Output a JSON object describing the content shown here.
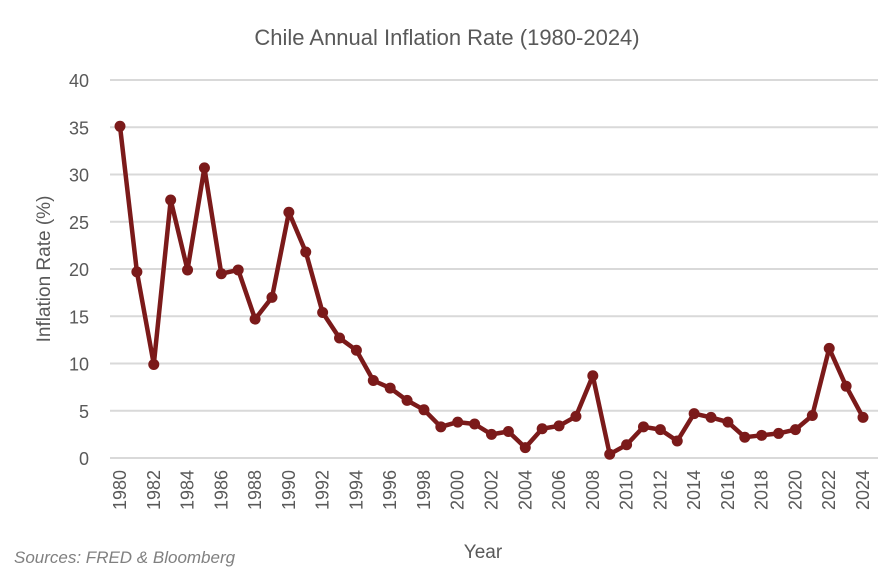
{
  "chart_data": {
    "type": "line",
    "title": "Chile Annual Inflation Rate  (1980-2024)",
    "xlabel": "Year",
    "ylabel": "Inflation Rate (%)",
    "source_note": "Sources: FRED & Bloomberg",
    "ylim": [
      0,
      40
    ],
    "yticks": [
      "0",
      "5",
      "10",
      "15",
      "20",
      "25",
      "30",
      "35",
      "40"
    ],
    "ytick_values": [
      0,
      5,
      10,
      15,
      20,
      25,
      30,
      35,
      40
    ],
    "xtick_labels": [
      "1980",
      "1982",
      "1984",
      "1986",
      "1988",
      "1990",
      "1992",
      "1994",
      "1996",
      "1998",
      "2000",
      "2002",
      "2004",
      "2006",
      "2008",
      "2010",
      "2012",
      "2014",
      "2016",
      "2018",
      "2020",
      "2022",
      "2024"
    ],
    "grid": true,
    "legend": "none",
    "series": [
      {
        "name": "Inflation Rate (%)",
        "color": "#7b1a1a",
        "x": [
          1980,
          1981,
          1982,
          1983,
          1984,
          1985,
          1986,
          1987,
          1988,
          1989,
          1990,
          1991,
          1992,
          1993,
          1994,
          1995,
          1996,
          1997,
          1998,
          1999,
          2000,
          2001,
          2002,
          2003,
          2004,
          2005,
          2006,
          2007,
          2008,
          2009,
          2010,
          2011,
          2012,
          2013,
          2014,
          2015,
          2016,
          2017,
          2018,
          2019,
          2020,
          2021,
          2022,
          2023,
          2024
        ],
        "values": [
          35.1,
          19.7,
          9.9,
          27.3,
          19.9,
          30.7,
          19.5,
          19.9,
          14.7,
          17.0,
          26.0,
          21.8,
          15.4,
          12.7,
          11.4,
          8.2,
          7.4,
          6.1,
          5.1,
          3.3,
          3.8,
          3.6,
          2.5,
          2.8,
          1.1,
          3.1,
          3.4,
          4.4,
          8.7,
          0.4,
          1.4,
          3.3,
          3.0,
          1.8,
          4.7,
          4.3,
          3.8,
          2.2,
          2.4,
          2.6,
          3.0,
          4.5,
          11.6,
          7.6,
          4.3
        ]
      }
    ]
  }
}
